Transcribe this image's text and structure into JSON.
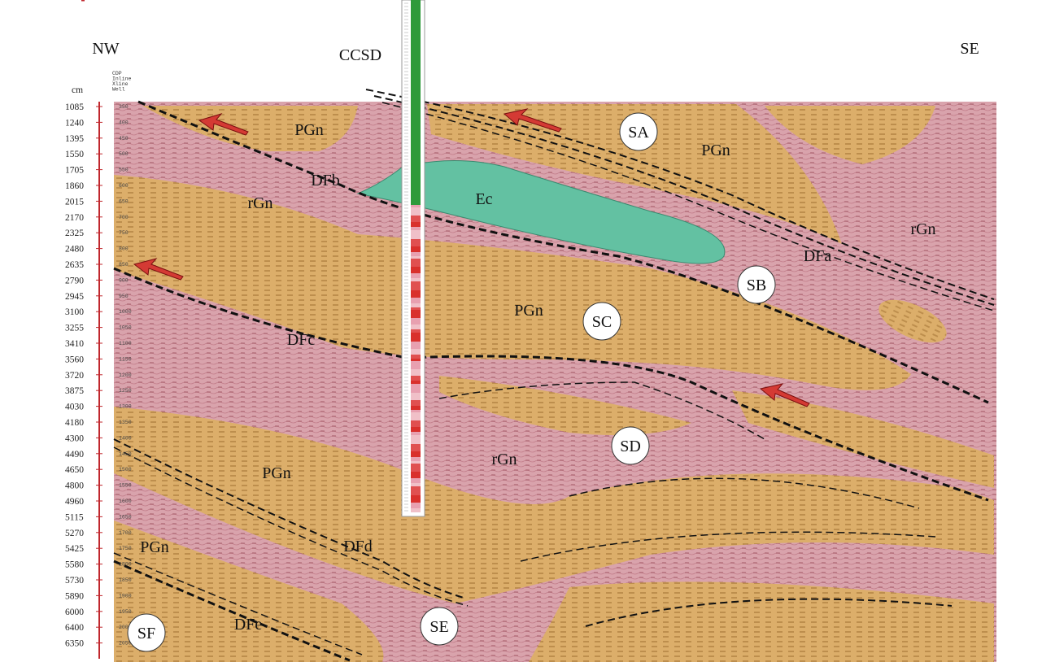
{
  "header": {
    "left": "NW",
    "center": "CCSD",
    "right": "SE"
  },
  "axis": {
    "unit": "cm",
    "depth_labels": [
      "1085",
      "1240",
      "1395",
      "1550",
      "1705",
      "1860",
      "2015",
      "2170",
      "2325",
      "2480",
      "2635",
      "2790",
      "2945",
      "3100",
      "3255",
      "3410",
      "3560",
      "3720",
      "3875",
      "4030",
      "4180",
      "4300",
      "4490",
      "4650",
      "4800",
      "4960",
      "5115",
      "5270",
      "5425",
      "5580",
      "5730",
      "5890",
      "6000",
      "6400",
      "6350"
    ],
    "time_labels": [
      "350",
      "400",
      "450",
      "500",
      "550",
      "600",
      "650",
      "700",
      "750",
      "800",
      "850",
      "900",
      "950",
      "1000",
      "1050",
      "1100",
      "1150",
      "1200",
      "1250",
      "1300",
      "1350",
      "1400",
      "1450",
      "1500",
      "1550",
      "1600",
      "1650",
      "1700",
      "1750",
      "1800",
      "1850",
      "1900",
      "1950",
      "2000",
      "2050"
    ],
    "header_labels": [
      "CDP",
      "Inline",
      "Xline",
      "Well"
    ]
  },
  "units": [
    "PGn",
    "PGn",
    "rGn",
    "Ec",
    "rGn",
    "PGn",
    "rGn",
    "PGn",
    "PGn"
  ],
  "faults": [
    "DFb",
    "DFa",
    "DFc",
    "DFd",
    "DFe"
  ],
  "zones": [
    "SA",
    "SB",
    "SC",
    "SD",
    "SE",
    "SF"
  ]
}
